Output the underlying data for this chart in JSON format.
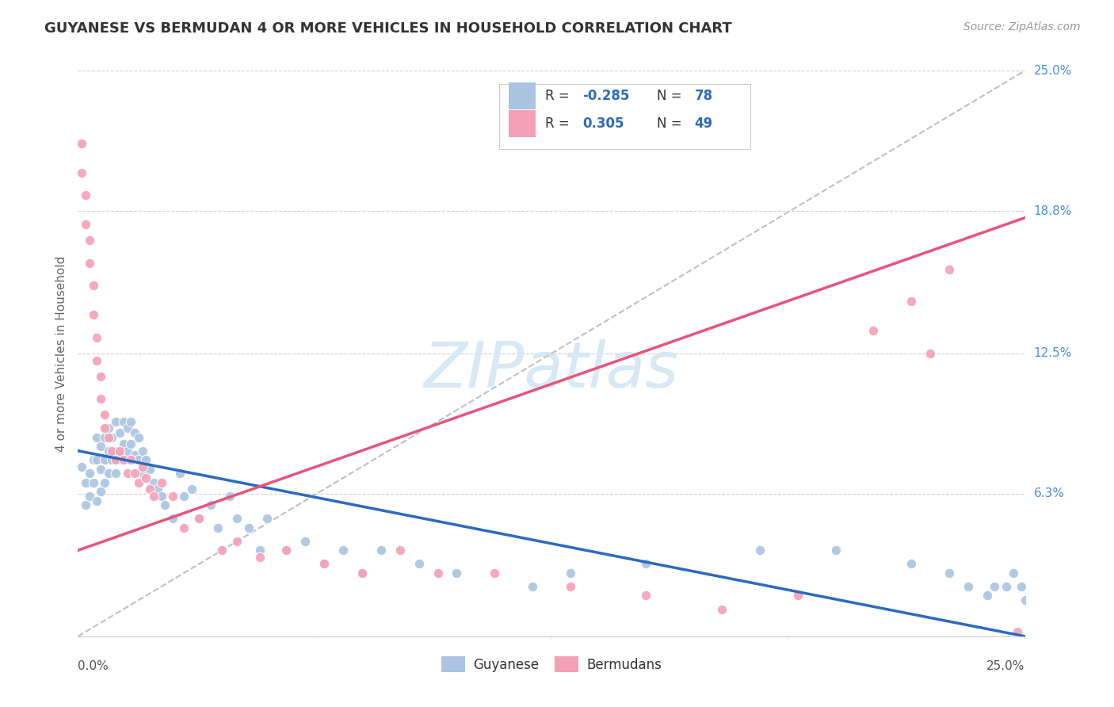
{
  "title": "GUYANESE VS BERMUDAN 4 OR MORE VEHICLES IN HOUSEHOLD CORRELATION CHART",
  "source_text": "Source: ZipAtlas.com",
  "ylabel": "4 or more Vehicles in Household",
  "xlim": [
    0.0,
    0.25
  ],
  "ylim": [
    0.0,
    0.25
  ],
  "guyanese_R": -0.285,
  "guyanese_N": 78,
  "bermudans_R": 0.305,
  "bermudans_N": 49,
  "guyanese_color": "#aac4e2",
  "bermudans_color": "#f5a0b5",
  "guyanese_line_color": "#2b6bbf",
  "bermudans_line_color": "#e8547a",
  "diagonal_color": "#c0c0c0",
  "background_color": "#ffffff",
  "grid_color": "#d0d0d0",
  "title_color": "#333333",
  "watermark_text": "ZIPatlas",
  "watermark_color": "#d8e8f4",
  "right_tick_color": "#4a90d9",
  "ytick_positions": [
    0.0,
    0.063,
    0.125,
    0.188,
    0.25
  ],
  "ytick_labels": [
    "",
    "6.3%",
    "12.5%",
    "18.8%",
    "25.0%"
  ],
  "guyanese_line_x0": 0.0,
  "guyanese_line_y0": 0.082,
  "guyanese_line_x1": 0.25,
  "guyanese_line_y1": 0.0,
  "bermudans_line_x0": 0.0,
  "bermudans_line_y0": 0.038,
  "bermudans_line_x1": 0.25,
  "bermudans_line_y1": 0.185,
  "guyanese_x": [
    0.001,
    0.002,
    0.002,
    0.003,
    0.003,
    0.004,
    0.004,
    0.005,
    0.005,
    0.005,
    0.006,
    0.006,
    0.006,
    0.007,
    0.007,
    0.007,
    0.008,
    0.008,
    0.008,
    0.009,
    0.009,
    0.01,
    0.01,
    0.01,
    0.011,
    0.011,
    0.012,
    0.012,
    0.013,
    0.013,
    0.014,
    0.014,
    0.015,
    0.015,
    0.016,
    0.016,
    0.017,
    0.017,
    0.018,
    0.019,
    0.02,
    0.021,
    0.022,
    0.023,
    0.025,
    0.027,
    0.028,
    0.03,
    0.032,
    0.035,
    0.037,
    0.04,
    0.042,
    0.045,
    0.048,
    0.05,
    0.055,
    0.06,
    0.065,
    0.07,
    0.075,
    0.08,
    0.09,
    0.1,
    0.12,
    0.13,
    0.15,
    0.18,
    0.2,
    0.22,
    0.23,
    0.235,
    0.24,
    0.242,
    0.245,
    0.247,
    0.249,
    0.25
  ],
  "guyanese_y": [
    0.075,
    0.068,
    0.058,
    0.072,
    0.062,
    0.078,
    0.068,
    0.088,
    0.078,
    0.06,
    0.084,
    0.074,
    0.064,
    0.088,
    0.078,
    0.068,
    0.092,
    0.082,
    0.072,
    0.088,
    0.078,
    0.095,
    0.082,
    0.072,
    0.09,
    0.08,
    0.095,
    0.085,
    0.092,
    0.082,
    0.095,
    0.085,
    0.09,
    0.08,
    0.088,
    0.078,
    0.082,
    0.072,
    0.078,
    0.074,
    0.068,
    0.065,
    0.062,
    0.058,
    0.052,
    0.072,
    0.062,
    0.065,
    0.052,
    0.058,
    0.048,
    0.062,
    0.052,
    0.048,
    0.038,
    0.052,
    0.038,
    0.042,
    0.032,
    0.038,
    0.028,
    0.038,
    0.032,
    0.028,
    0.022,
    0.028,
    0.032,
    0.038,
    0.038,
    0.032,
    0.028,
    0.022,
    0.018,
    0.022,
    0.022,
    0.028,
    0.022,
    0.016
  ],
  "bermudans_x": [
    0.001,
    0.001,
    0.002,
    0.002,
    0.003,
    0.003,
    0.004,
    0.004,
    0.005,
    0.005,
    0.006,
    0.006,
    0.007,
    0.007,
    0.008,
    0.009,
    0.01,
    0.011,
    0.012,
    0.013,
    0.014,
    0.015,
    0.016,
    0.017,
    0.018,
    0.019,
    0.02,
    0.022,
    0.025,
    0.028,
    0.032,
    0.038,
    0.042,
    0.048,
    0.055,
    0.065,
    0.075,
    0.085,
    0.095,
    0.11,
    0.13,
    0.15,
    0.17,
    0.19,
    0.21,
    0.22,
    0.225,
    0.23,
    0.248
  ],
  "bermudans_y": [
    0.218,
    0.205,
    0.195,
    0.182,
    0.175,
    0.165,
    0.155,
    0.142,
    0.132,
    0.122,
    0.115,
    0.105,
    0.098,
    0.092,
    0.088,
    0.082,
    0.078,
    0.082,
    0.078,
    0.072,
    0.078,
    0.072,
    0.068,
    0.075,
    0.07,
    0.065,
    0.062,
    0.068,
    0.062,
    0.048,
    0.052,
    0.038,
    0.042,
    0.035,
    0.038,
    0.032,
    0.028,
    0.038,
    0.028,
    0.028,
    0.022,
    0.018,
    0.012,
    0.018,
    0.135,
    0.148,
    0.125,
    0.162,
    0.002
  ]
}
